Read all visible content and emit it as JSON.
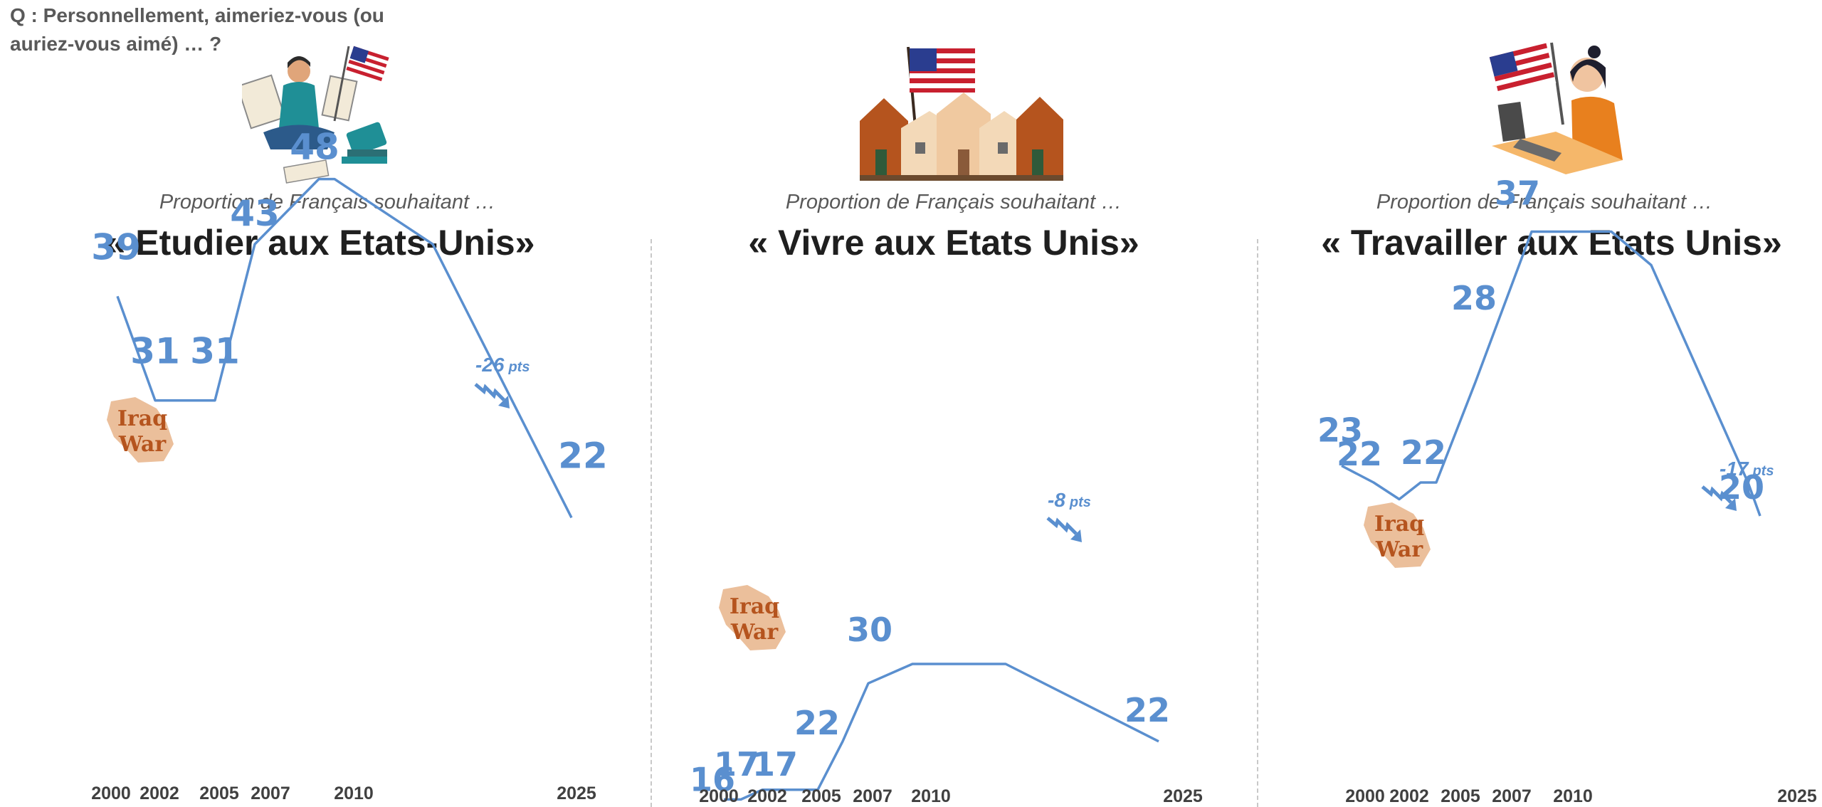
{
  "question": "Q : Personnellement, aimeriez-vous (ou auriez-vous aimé) … ?",
  "annotation_iraq": [
    "Iraq",
    "War"
  ],
  "colors": {
    "series": "#5a8fcf",
    "iraq": "#b5541e",
    "iraq_bg": "#e8b48a",
    "title": "#1f1f1f",
    "subtitle": "#595959"
  },
  "icons": [
    "student-with-flag-illustration",
    "houses-with-flag-illustration",
    "woman-at-computer-with-flag-illustration",
    "down-trend-arrow-icon",
    "iraq-map-icon"
  ],
  "chart_data": [
    {
      "type": "line",
      "subtitle": "Proportion de Français souhaitant …",
      "title": "« Etudier aux Etats-Unis»",
      "x_ticks": [
        2000,
        2002,
        2005,
        2007,
        2010,
        2025
      ],
      "points": [
        {
          "x": 2000,
          "y": 39,
          "label": "39"
        },
        {
          "x": 2002,
          "y": 31,
          "label": "31"
        },
        {
          "x": 2005,
          "y": 31,
          "label": "31"
        },
        {
          "x": 2007,
          "y": 43,
          "label": "43"
        },
        {
          "x": 2009,
          "y": 48,
          "label": "48"
        },
        {
          "x": 2010,
          "y": 48,
          "label": null
        },
        {
          "x": 2014,
          "y": 43,
          "label": null
        },
        {
          "x": 2025,
          "y": 22,
          "label": "22"
        }
      ],
      "delta": "-26 pts",
      "ylim": [
        14,
        50
      ]
    },
    {
      "type": "line",
      "subtitle": "Proportion de Français souhaitant …",
      "title": "« Vivre aux Etats Unis»",
      "x_ticks": [
        2000,
        2002,
        2005,
        2007,
        2010,
        2025
      ],
      "points": [
        {
          "x": 2000,
          "y": 16,
          "label": "16"
        },
        {
          "x": 2001,
          "y": 16,
          "label": null
        },
        {
          "x": 2002,
          "y": 17,
          "label": "17"
        },
        {
          "x": 2005,
          "y": 17,
          "label": "17"
        },
        {
          "x": 2007,
          "y": 22,
          "label": "22"
        },
        {
          "x": 2008,
          "y": 28,
          "label": null
        },
        {
          "x": 2009,
          "y": 30,
          "label": "30"
        },
        {
          "x": 2013,
          "y": 30,
          "label": null
        },
        {
          "x": 2025,
          "y": 22,
          "label": "22"
        }
      ],
      "delta": "-8 pts",
      "ylim": [
        14,
        50
      ]
    },
    {
      "type": "line",
      "subtitle": "Proportion de Français souhaitant …",
      "title": "« Travailler aux Etats Unis»",
      "x_ticks": [
        2000,
        2002,
        2005,
        2007,
        2010,
        2025
      ],
      "points": [
        {
          "x": 2000,
          "y": 23,
          "label": "23"
        },
        {
          "x": 2002,
          "y": 22,
          "label": "22"
        },
        {
          "x": 2003,
          "y": 21,
          "label": null
        },
        {
          "x": 2004,
          "y": 22,
          "label": null
        },
        {
          "x": 2005,
          "y": 22,
          "label": "22"
        },
        {
          "x": 2007,
          "y": 28,
          "label": "28"
        },
        {
          "x": 2009,
          "y": 37,
          "label": "37"
        },
        {
          "x": 2013,
          "y": 37,
          "label": null
        },
        {
          "x": 2015,
          "y": 35,
          "label": null
        },
        {
          "x": 2024,
          "y": 22,
          "label": null
        },
        {
          "x": 2025,
          "y": 20,
          "label": "20"
        }
      ],
      "delta": "-17 pts",
      "ylim": [
        14,
        50
      ]
    }
  ]
}
